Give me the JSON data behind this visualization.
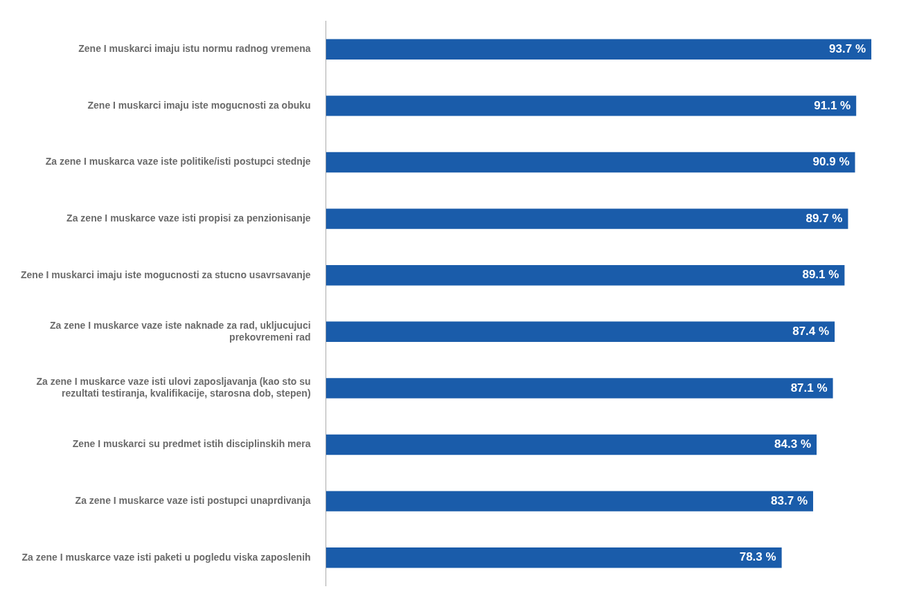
{
  "chart_data": {
    "type": "bar",
    "orientation": "horizontal",
    "categories": [
      "Zene I muskarci imaju istu normu radnog vremena",
      "Zene I muskarci imaju iste mogucnosti za obuku",
      "Za zene I muskarca vaze iste politike/isti postupci stednje",
      "Za zene I muskarce vaze isti propisi za penzionisanje",
      "Zene I muskarci imaju iste mogucnosti za stucno usavrsavanje",
      "Za zene I muskarce vaze iste naknade za rad, ukljucujuci prekovremeni rad",
      "Za zene I muskarce vaze isti ulovi zaposljavanja (kao sto su rezultati testiranja, kvalifikacije, starosna dob, stepen)",
      "Zene I muskarci su predmet istih disciplinskih mera",
      "Za zene I muskarce vaze isti postupci unaprdivanja",
      "Za zene I muskarce vaze isti paketi u pogledu viska zaposlenih"
    ],
    "values": [
      93.7,
      91.1,
      90.9,
      89.7,
      89.1,
      87.4,
      87.1,
      84.3,
      83.7,
      78.3
    ],
    "value_labels": [
      "93.7 %",
      "91.1 %",
      "90.9 %",
      "89.7 %",
      "89.1 %",
      "87.4 %",
      "87.1 %",
      "84.3 %",
      "83.7 %",
      "78.3 %"
    ],
    "color": "#1a5caa",
    "tick_labels": "y"
  }
}
